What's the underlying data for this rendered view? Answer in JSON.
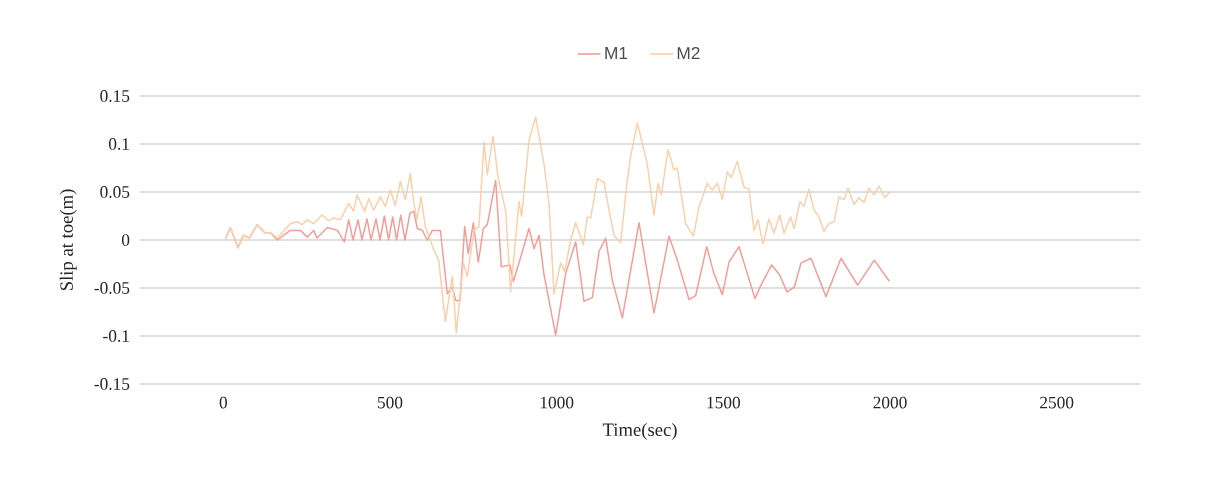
{
  "chart_data": {
    "type": "line",
    "xlabel": "Time(sec)",
    "ylabel": "Slip at toe(m)",
    "xlim": [
      -250,
      2750
    ],
    "ylim": [
      -0.15,
      0.15
    ],
    "xticks": [
      0,
      500,
      1000,
      1500,
      2000,
      2500
    ],
    "yticks": [
      -0.15,
      -0.1,
      -0.05,
      0,
      0.05,
      0.1,
      0.15
    ],
    "grid": "y",
    "legend": "top",
    "marker": "none",
    "line_style": "solid",
    "series": [
      {
        "name": "M1",
        "color": "#f79b96",
        "x": [
          6,
          21,
          44,
          60,
          78,
          102,
          126,
          143,
          162,
          201,
          231,
          252,
          271,
          281,
          312,
          342,
          363,
          376,
          389,
          404,
          416,
          431,
          443,
          458,
          470,
          483,
          496,
          508,
          520,
          532,
          545,
          560,
          571,
          582,
          597,
          612,
          627,
          651,
          672,
          687,
          697,
          710,
          724,
          735,
          750,
          765,
          780,
          792,
          817,
          834,
          860,
          870,
          887,
          917,
          932,
          947,
          962,
          997,
          1027,
          1057,
          1082,
          1107,
          1127,
          1147,
          1167,
          1197,
          1247,
          1292,
          1337,
          1362,
          1397,
          1417,
          1450,
          1472,
          1497,
          1517,
          1547,
          1572,
          1595,
          1613,
          1645,
          1668,
          1691,
          1713,
          1733,
          1763,
          1808,
          1853,
          1903,
          1953,
          1998
        ],
        "values": [
          0.001,
          0.013,
          -0.008,
          0.005,
          0.002,
          0.016,
          0.007,
          0.007,
          0.0,
          0.01,
          0.01,
          0.003,
          0.01,
          0.002,
          0.013,
          0.01,
          -0.002,
          0.021,
          0.0,
          0.021,
          0.0,
          0.022,
          0.0,
          0.022,
          0.0,
          0.025,
          0.0,
          0.024,
          0.0,
          0.026,
          0.0,
          0.028,
          0.03,
          0.012,
          0.01,
          0.0,
          0.01,
          0.01,
          -0.056,
          -0.049,
          -0.063,
          -0.063,
          0.014,
          -0.014,
          0.018,
          -0.023,
          0.012,
          0.016,
          0.062,
          -0.028,
          -0.026,
          -0.043,
          -0.024,
          0.012,
          -0.009,
          0.005,
          -0.036,
          -0.099,
          -0.035,
          -0.002,
          -0.064,
          -0.06,
          -0.012,
          0.002,
          -0.042,
          -0.081,
          0.018,
          -0.076,
          0.004,
          -0.021,
          -0.062,
          -0.058,
          -0.007,
          -0.035,
          -0.057,
          -0.023,
          -0.007,
          -0.035,
          -0.061,
          -0.047,
          -0.026,
          -0.036,
          -0.054,
          -0.049,
          -0.024,
          -0.019,
          -0.059,
          -0.019,
          -0.047,
          -0.021,
          -0.043
        ]
      },
      {
        "name": "M2",
        "color": "#fbcfa8",
        "x": [
          6,
          21,
          44,
          60,
          78,
          102,
          126,
          143,
          162,
          201,
          221,
          236,
          251,
          271,
          296,
          316,
          331,
          351,
          376,
          391,
          401,
          424,
          436,
          451,
          471,
          486,
          501,
          516,
          531,
          546,
          561,
          571,
          581,
          593,
          606,
          631,
          646,
          666,
          687,
          699,
          720,
          732,
          752,
          767,
          782,
          792,
          809,
          824,
          847,
          862,
          887,
          895,
          917,
          937,
          962,
          977,
          992,
          1012,
          1024,
          1042,
          1057,
          1080,
          1092,
          1102,
          1122,
          1142,
          1157,
          1172,
          1192,
          1212,
          1222,
          1242,
          1272,
          1292,
          1304,
          1314,
          1334,
          1352,
          1362,
          1387,
          1410,
          1427,
          1452,
          1467,
          1482,
          1497,
          1512,
          1524,
          1542,
          1562,
          1577,
          1592,
          1604,
          1619,
          1637,
          1652,
          1669,
          1682,
          1702,
          1712,
          1730,
          1742,
          1757,
          1772,
          1784,
          1802,
          1817,
          1832,
          1847,
          1862,
          1874,
          1892,
          1907,
          1922,
          1937,
          1952,
          1967,
          1984,
          2000
        ],
        "values": [
          0.001,
          0.013,
          -0.008,
          0.005,
          0.002,
          0.016,
          0.007,
          0.007,
          0.002,
          0.017,
          0.019,
          0.016,
          0.021,
          0.017,
          0.026,
          0.02,
          0.023,
          0.021,
          0.038,
          0.03,
          0.047,
          0.03,
          0.043,
          0.031,
          0.045,
          0.035,
          0.052,
          0.036,
          0.061,
          0.042,
          0.069,
          0.04,
          0.021,
          0.045,
          0.014,
          -0.01,
          -0.021,
          -0.085,
          -0.038,
          -0.097,
          -0.024,
          -0.038,
          0.01,
          0.014,
          0.102,
          0.068,
          0.108,
          0.066,
          0.03,
          -0.054,
          0.04,
          0.025,
          0.104,
          0.128,
          0.079,
          0.038,
          -0.056,
          -0.024,
          -0.033,
          0.0,
          0.018,
          -0.005,
          0.024,
          0.023,
          0.064,
          0.06,
          0.031,
          0.005,
          -0.003,
          0.063,
          0.087,
          0.122,
          0.079,
          0.026,
          0.059,
          0.047,
          0.094,
          0.073,
          0.075,
          0.017,
          0.004,
          0.034,
          0.059,
          0.052,
          0.059,
          0.042,
          0.071,
          0.065,
          0.082,
          0.055,
          0.053,
          0.01,
          0.021,
          -0.004,
          0.022,
          0.007,
          0.026,
          0.007,
          0.024,
          0.012,
          0.04,
          0.035,
          0.053,
          0.031,
          0.026,
          0.009,
          0.017,
          0.019,
          0.045,
          0.042,
          0.054,
          0.037,
          0.044,
          0.039,
          0.054,
          0.047,
          0.056,
          0.044,
          0.05
        ]
      }
    ]
  }
}
